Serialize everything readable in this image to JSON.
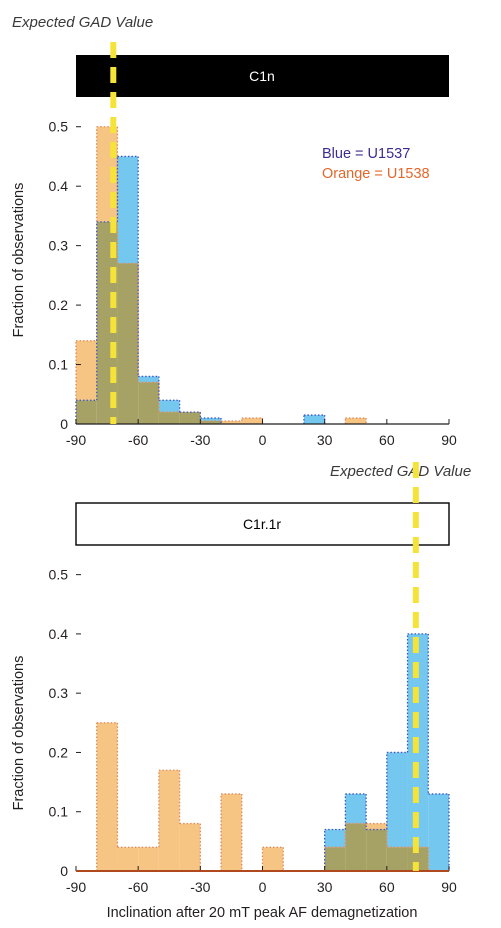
{
  "colors": {
    "blue_fill": "#74c7ee",
    "orange_fill": "#f7c583",
    "overlap_fill": "#a6a265",
    "outline": "#b07ab0",
    "blue_dots": "#3a56c4",
    "orange_dots": "#e08a5a",
    "gad_line": "#f6e33a",
    "axis": "#231f20",
    "baseline_bottom": "#b04a1e",
    "legend_blue": "#3b2d8f",
    "legend_orange": "#e3672b",
    "title_bar_top": "#000000"
  },
  "chart_data": [
    {
      "type": "histogram",
      "title": "C1n",
      "title_style": "black bar with white text",
      "ylabel": "Fraction of observations",
      "xlabel": "",
      "xlim": [
        -90,
        90
      ],
      "ylim": [
        0,
        0.55
      ],
      "xticks": [
        "-90",
        "-60",
        "-30",
        "0",
        "30",
        "60",
        "90"
      ],
      "yticks": [
        "0",
        "0.1",
        "0.2",
        "0.3",
        "0.4",
        "0.5"
      ],
      "bin_width": 10,
      "bin_edges": [
        -90,
        -80,
        -70,
        -60,
        -50,
        -40,
        -30,
        -20,
        -10,
        0,
        10,
        20,
        30,
        40,
        50,
        60,
        70,
        80,
        90
      ],
      "series": [
        {
          "name": "U1537",
          "color": "blue",
          "values": [
            0.04,
            0.34,
            0.45,
            0.08,
            0.04,
            0.02,
            0.01,
            0.0,
            0.0,
            0.0,
            0.0,
            0.015,
            0.0,
            0.0,
            0.0,
            0.0,
            0.0,
            0.0
          ]
        },
        {
          "name": "U1538",
          "color": "orange",
          "values": [
            0.14,
            0.5,
            0.27,
            0.07,
            0.02,
            0.02,
            0.005,
            0.005,
            0.01,
            0.0,
            0.0,
            0.0,
            0.0,
            0.01,
            0.0,
            0.0,
            0.0,
            0.0
          ]
        }
      ],
      "legend": {
        "position": "top-right",
        "entries": [
          "Blue = U1537",
          "Orange = U1538"
        ]
      },
      "annotation": {
        "text": "Expected GAD Value",
        "x": -72,
        "style": "yellow dashed vertical line"
      }
    },
    {
      "type": "histogram",
      "title": "C1r.1r",
      "title_style": "white bar with black text",
      "ylabel": "Fraction of observations",
      "xlabel": "Inclination after 20 mT peak AF demagnetization",
      "xlim": [
        -90,
        90
      ],
      "ylim": [
        0,
        0.55
      ],
      "xticks": [
        "-90",
        "-60",
        "-30",
        "0",
        "30",
        "60",
        "90"
      ],
      "yticks": [
        "0",
        "0.1",
        "0.2",
        "0.3",
        "0.4",
        "0.5"
      ],
      "bin_width": 10,
      "bin_edges": [
        -90,
        -80,
        -70,
        -60,
        -50,
        -40,
        -30,
        -20,
        -10,
        0,
        10,
        20,
        30,
        40,
        50,
        60,
        70,
        80,
        90
      ],
      "series": [
        {
          "name": "U1537",
          "color": "blue",
          "values": [
            0,
            0,
            0,
            0,
            0,
            0,
            0,
            0,
            0,
            0,
            0,
            0,
            0.07,
            0.13,
            0.07,
            0.2,
            0.4,
            0.13
          ]
        },
        {
          "name": "U1538",
          "color": "orange",
          "values": [
            0,
            0.25,
            0.04,
            0.04,
            0.17,
            0.08,
            0,
            0.13,
            0,
            0.04,
            0,
            0,
            0.04,
            0.08,
            0.08,
            0.04,
            0.04,
            0
          ]
        }
      ],
      "annotation": {
        "text": "Expected GAD Value",
        "x": 74,
        "style": "yellow dashed vertical line"
      }
    }
  ]
}
